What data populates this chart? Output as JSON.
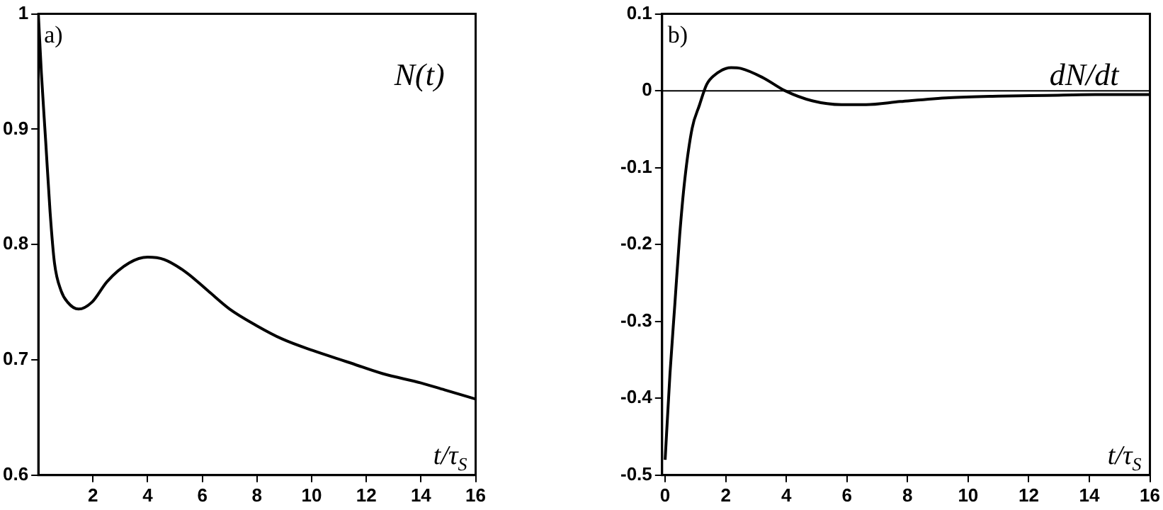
{
  "chart_data": [
    {
      "type": "line",
      "title": "N(t)",
      "xlabel": "t/τ$_{S}$",
      "annotations": [
        "a)"
      ],
      "grid": false,
      "legend": false,
      "marker": "none",
      "xlim": [
        0,
        16
      ],
      "xticks": [
        2,
        4,
        6,
        8,
        10,
        12,
        14,
        16
      ],
      "ylim": [
        0.6,
        1
      ],
      "yticks": [
        0.6,
        0.7,
        0.8,
        0.9,
        1
      ],
      "series": [
        {
          "color": "#000000",
          "x": [
            0,
            0.11,
            0.27,
            0.43,
            0.59,
            0.83,
            1.07,
            1.47,
            1.96,
            2.52,
            3.32,
            4.0,
            4.6,
            5.4,
            6.2,
            7.0,
            7.96,
            8.93,
            10.05,
            11.33,
            12.6,
            14.0,
            14.86,
            16
          ],
          "values": [
            1,
            0.949,
            0.889,
            0.828,
            0.784,
            0.76,
            0.75,
            0.744,
            0.75,
            0.768,
            0.784,
            0.789,
            0.787,
            0.776,
            0.76,
            0.744,
            0.73,
            0.718,
            0.708,
            0.698,
            0.688,
            0.68,
            0.674,
            0.666
          ]
        }
      ]
    },
    {
      "type": "line",
      "title": "dN/dt",
      "xlabel": "t/τ$_{S}$",
      "annotations": [
        "b)"
      ],
      "grid": false,
      "legend": false,
      "marker": "none",
      "xlim": [
        -0.1,
        16
      ],
      "xticks": [
        0,
        2,
        4,
        6,
        8,
        10,
        12,
        14,
        16
      ],
      "ylim": [
        -0.5,
        0.1
      ],
      "yticks": [
        -0.5,
        -0.4,
        -0.3,
        -0.2,
        -0.1,
        0,
        0.1
      ],
      "ref_lines": [
        {
          "axis": "y",
          "value": 0,
          "color": "#000000"
        }
      ],
      "series": [
        {
          "color": "#000000",
          "x": [
            0,
            0.16,
            0.32,
            0.48,
            0.65,
            0.89,
            1.13,
            1.37,
            1.62,
            2.18,
            2.5,
            3.23,
            3.96,
            4.85,
            5.82,
            6.63,
            7.76,
            9.37,
            10.99,
            12.6,
            14.2,
            16
          ],
          "values": [
            -0.48,
            -0.368,
            -0.278,
            -0.188,
            -0.115,
            -0.049,
            -0.019,
            0.008,
            0.02,
            0.03,
            0.029,
            0.017,
            0,
            -0.013,
            -0.018,
            -0.018,
            -0.014,
            -0.009,
            -0.007,
            -0.006,
            -0.005,
            -0.005
          ]
        }
      ]
    }
  ]
}
